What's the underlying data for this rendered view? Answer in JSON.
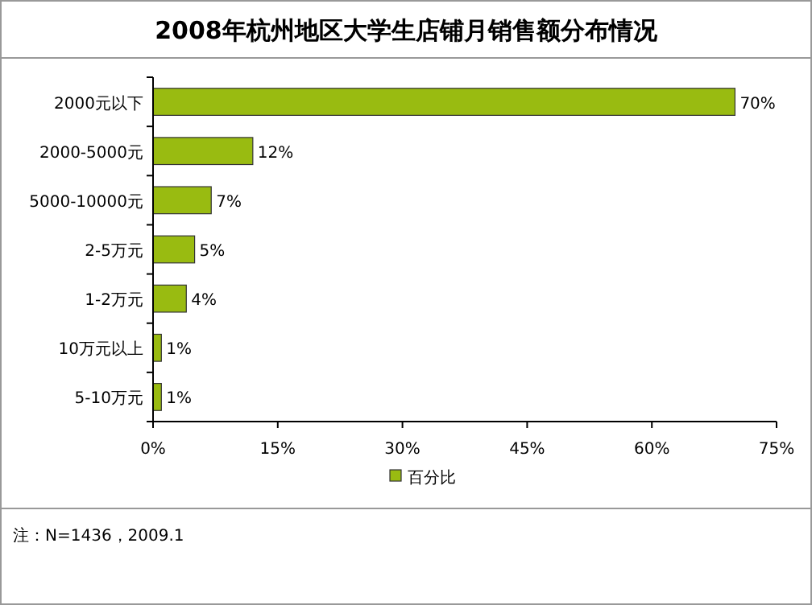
{
  "chart_data": {
    "type": "bar",
    "orientation": "horizontal",
    "title": "2008年杭州地区大学生店铺月销售额分布情况",
    "categories": [
      "2000元以下",
      "2000-5000元",
      "5000-10000元",
      "2-5万元",
      "1-2万元",
      "10万元以上",
      "5-10万元"
    ],
    "series": [
      {
        "name": "百分比",
        "color": "#99bb11",
        "values": [
          70,
          12,
          7,
          5,
          4,
          1,
          1
        ],
        "value_labels": [
          "70%",
          "12%",
          "7%",
          "5%",
          "4%",
          "1%",
          "1%"
        ]
      }
    ],
    "xlim": [
      0,
      75
    ],
    "xticks": [
      {
        "value": 0,
        "label": "0%"
      },
      {
        "value": 15,
        "label": "15%"
      },
      {
        "value": 30,
        "label": "30%"
      },
      {
        "value": 45,
        "label": "45%"
      },
      {
        "value": 60,
        "label": "60%"
      },
      {
        "value": 75,
        "label": "75%"
      }
    ],
    "legend": "bottom",
    "annotations": [
      "注：N=1436，2009.1"
    ]
  }
}
